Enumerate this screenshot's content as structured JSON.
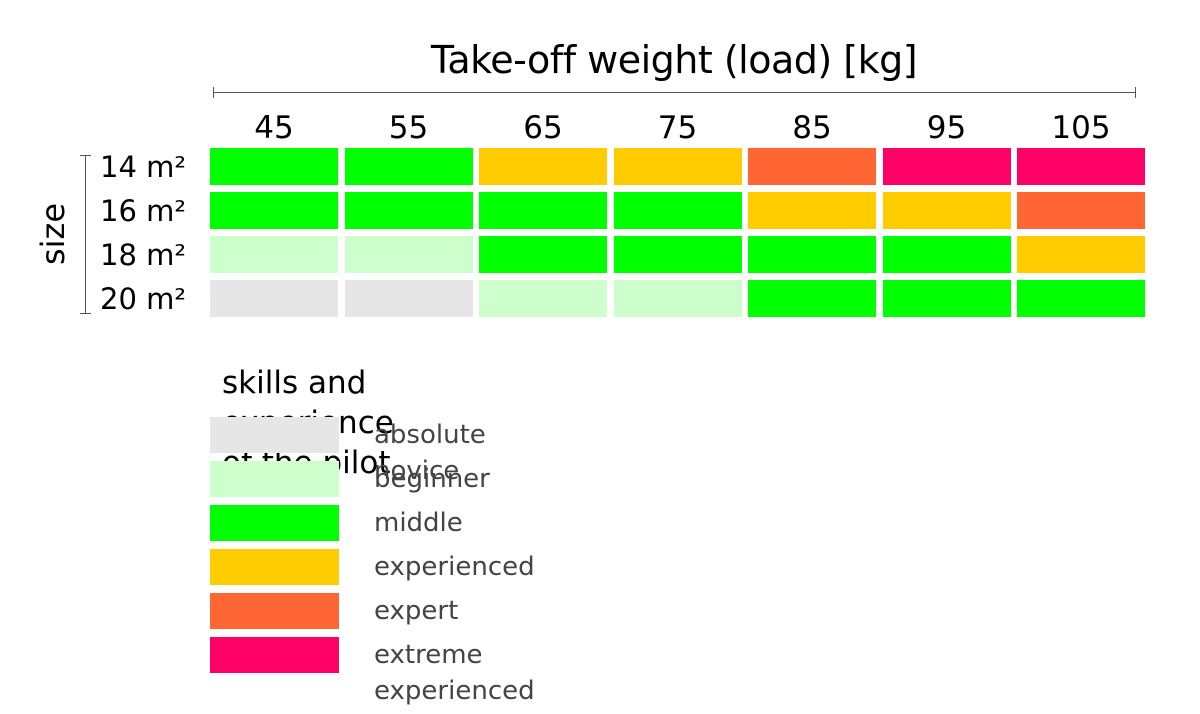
{
  "chart_data": {
    "type": "heatmap",
    "title": "Take-off weight (load) [kg]",
    "row_axis_label": "size",
    "columns": [
      "45",
      "55",
      "65",
      "75",
      "85",
      "95",
      "105"
    ],
    "rows": [
      "14 m²",
      "16 m²",
      "18 m²",
      "20 m²"
    ],
    "values": [
      [
        "middle",
        "middle",
        "experienced",
        "experienced",
        "expert",
        "extreme experienced",
        "extreme experienced"
      ],
      [
        "middle",
        "middle",
        "middle",
        "middle",
        "experienced",
        "experienced",
        "expert"
      ],
      [
        "beginner",
        "beginner",
        "middle",
        "middle",
        "middle",
        "middle",
        "experienced"
      ],
      [
        "absolute novice",
        "absolute novice",
        "beginner",
        "beginner",
        "middle",
        "middle",
        "middle"
      ]
    ],
    "legend_title": "skills and experience of the pilot",
    "legend": [
      {
        "label": "absolute novice",
        "color": "#e6e6e6"
      },
      {
        "label": "beginner",
        "color": "#ccffcc"
      },
      {
        "label": "middle",
        "color": "#00ff00"
      },
      {
        "label": "experienced",
        "color": "#ffcc00"
      },
      {
        "label": "expert",
        "color": "#ff6633"
      },
      {
        "label": "extreme experienced",
        "color": "#ff0066"
      }
    ]
  }
}
